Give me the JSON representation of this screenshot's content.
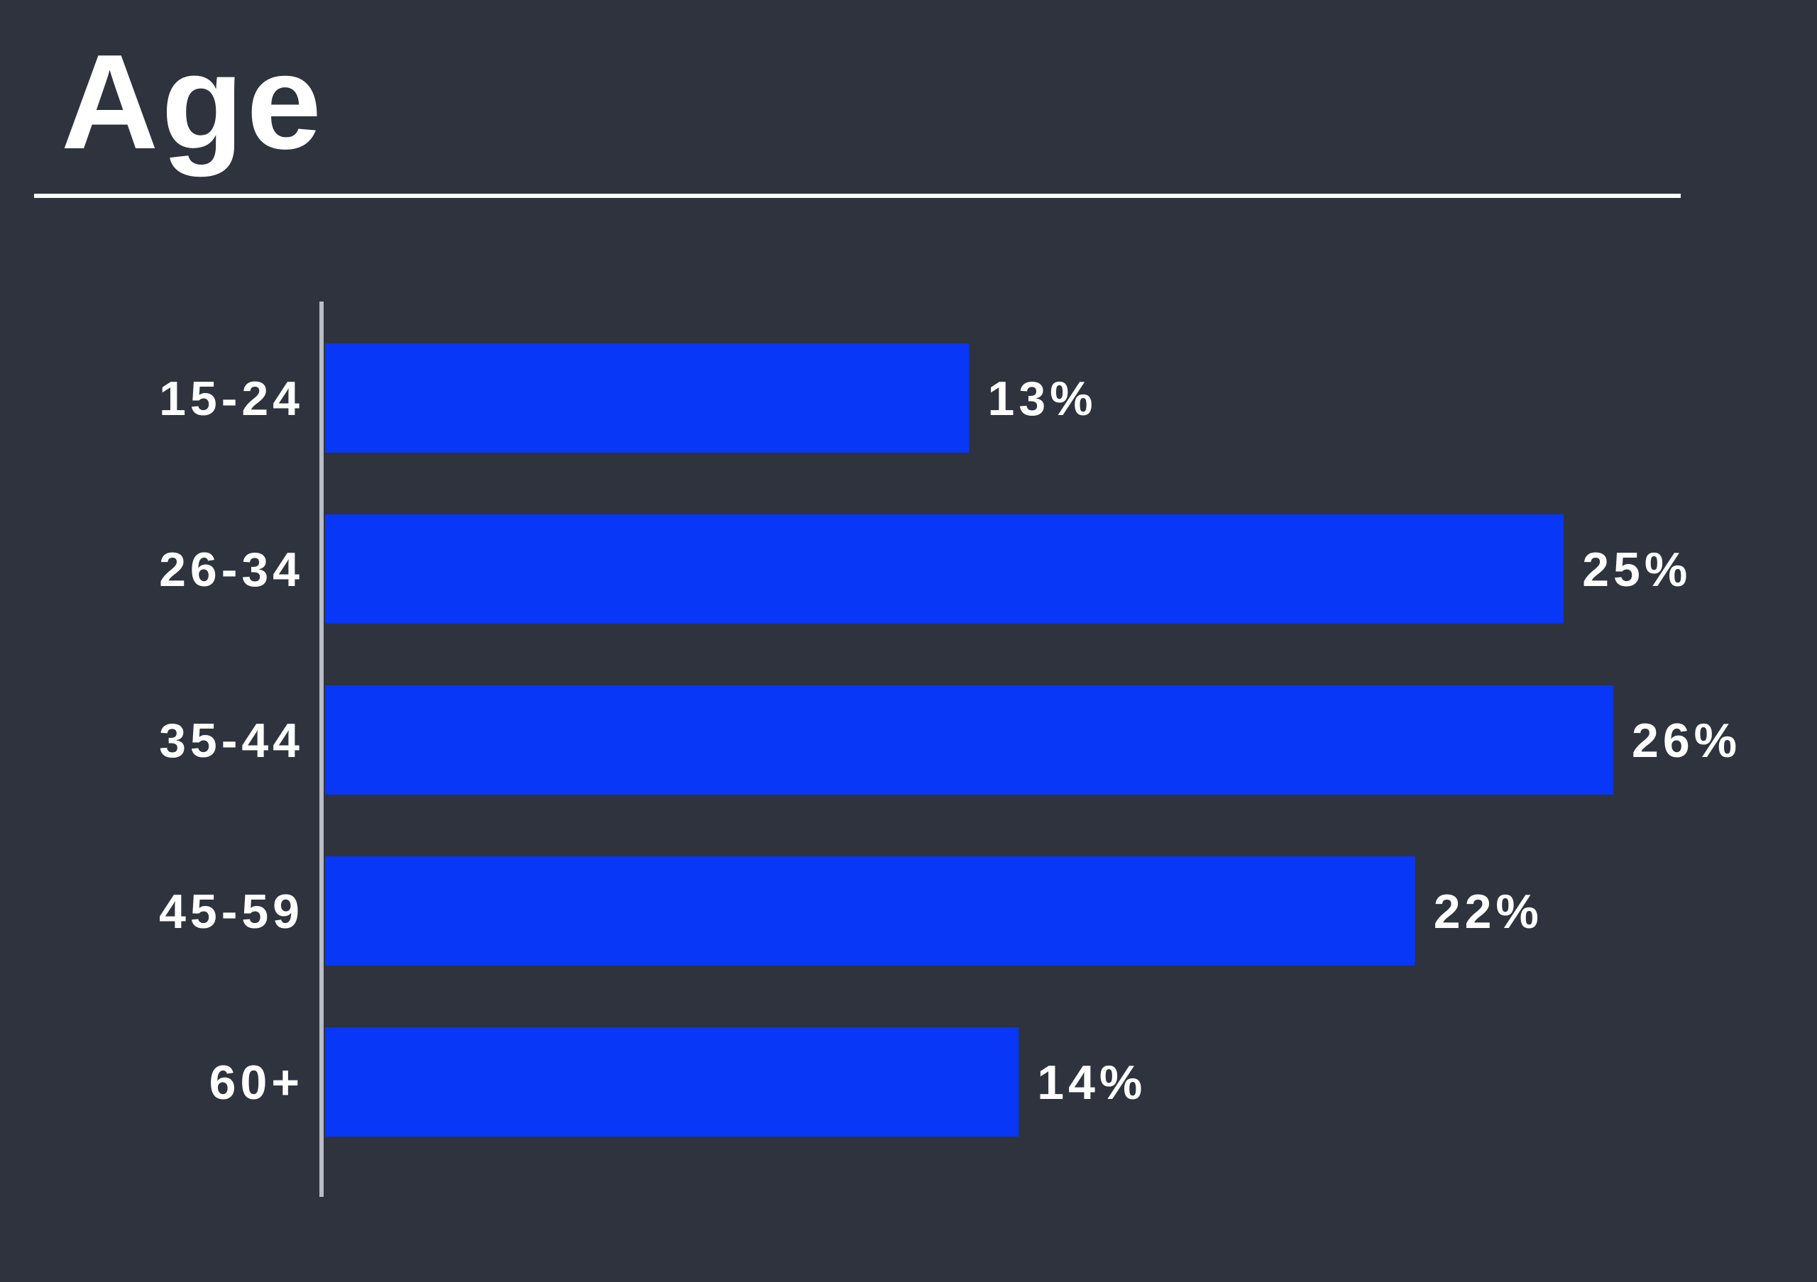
{
  "page": {
    "title": "Age"
  },
  "colors": {
    "background": "#2e333d",
    "bar": "#0837f7",
    "text": "#ffffff",
    "axis": "#b8bcc4"
  },
  "chart_data": {
    "type": "bar",
    "orientation": "horizontal",
    "title": "Age",
    "categories": [
      "15-24",
      "26-34",
      "35-44",
      "45-59",
      "60+"
    ],
    "values": [
      13,
      25,
      26,
      22,
      14
    ],
    "value_labels": [
      "13%",
      "25%",
      "26%",
      "22%",
      "14%"
    ],
    "unit": "%",
    "xlim": [
      0,
      26
    ],
    "grid": false,
    "legend": "none"
  }
}
